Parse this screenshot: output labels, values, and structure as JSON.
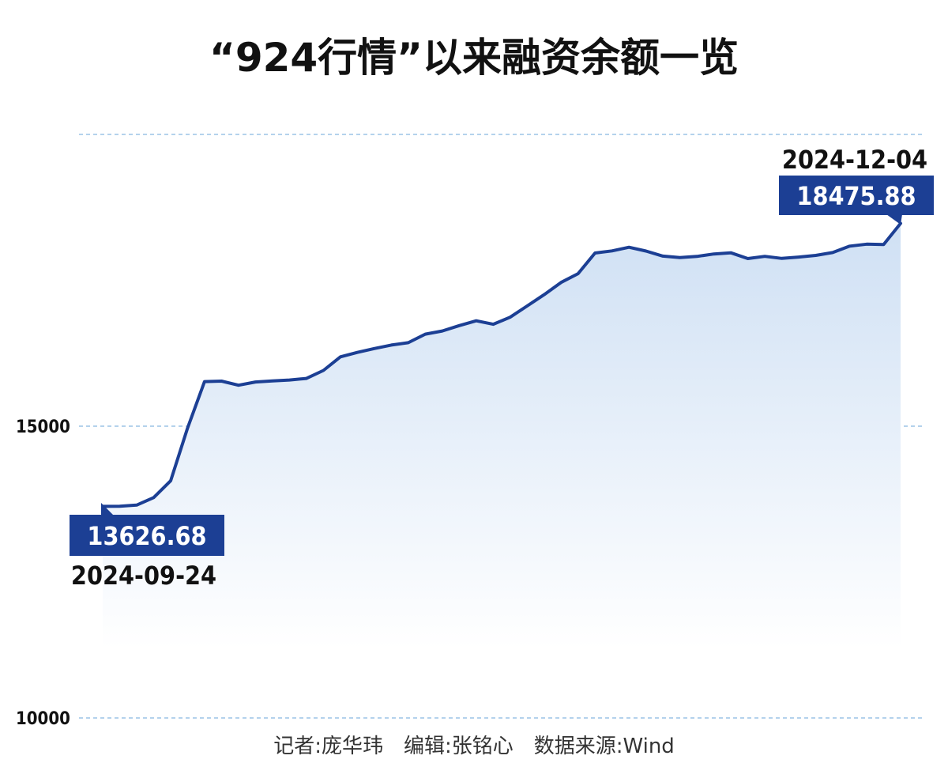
{
  "title": "“924行情”以来融资余额一览",
  "credit": "记者:庞华玮　编辑:张铭心　数据来源:Wind",
  "colors": {
    "line": "#1c3f94",
    "label_bg": "#1c3f94",
    "grid": "#9cc4e6",
    "fill_top": "#cfe0f4",
    "fill_bottom": "#ffffff"
  },
  "chart_data": {
    "type": "area",
    "title": "“924行情”以来融资余额一览",
    "xlabel": "",
    "ylabel": "",
    "ylim": [
      10000,
      20000
    ],
    "yticks": [
      10000,
      15000
    ],
    "ytick_labels": [
      "10000",
      "15000"
    ],
    "grid": "horizontal dashed",
    "legend": "none",
    "start_label": {
      "date": "2024-09-24",
      "value": "13626.68"
    },
    "end_label": {
      "date": "2024-12-04",
      "value": "18475.88"
    },
    "series": [
      {
        "values": [
          13626.68,
          13627,
          13648,
          13777,
          14064,
          14968,
          15764,
          15772,
          15702,
          15758,
          15777,
          15791,
          15819,
          15955,
          16189,
          16264,
          16330,
          16390,
          16431,
          16577,
          16632,
          16723,
          16806,
          16746,
          16867,
          17060,
          17254,
          17463,
          17614,
          17968,
          18004,
          18066,
          18002,
          17915,
          17889,
          17909,
          17951,
          17972,
          17873,
          17911,
          17876,
          17898,
          17927,
          17976,
          18085,
          18119,
          18114,
          18475.88
        ]
      }
    ]
  }
}
